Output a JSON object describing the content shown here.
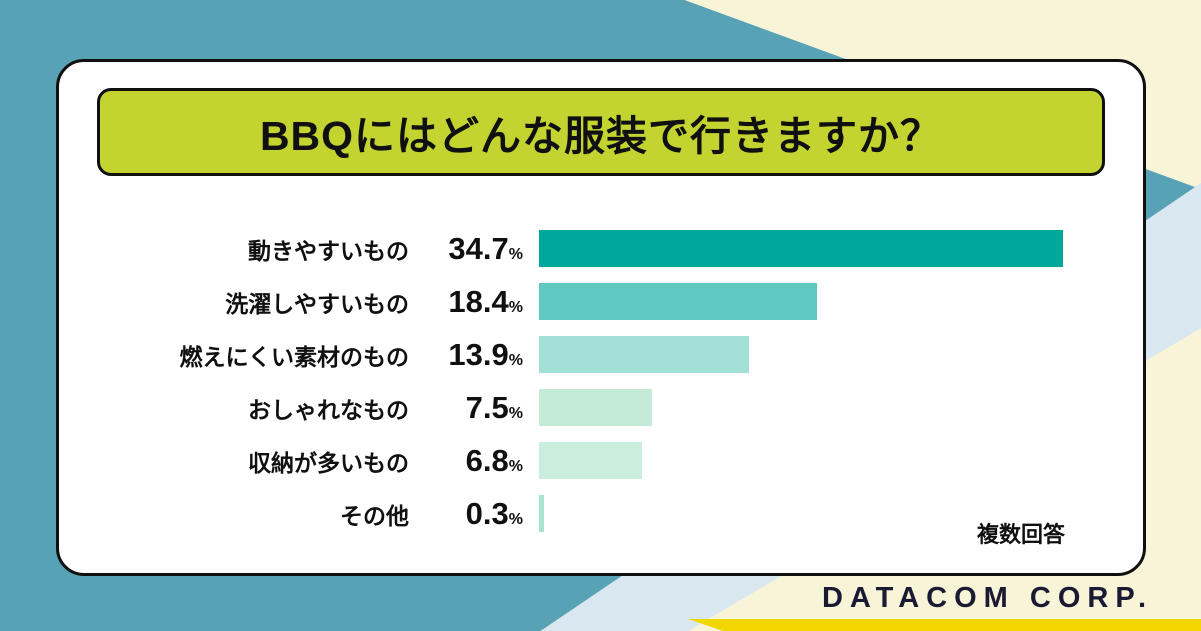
{
  "header": {
    "title": "BBQにはどんな服装で行きますか？"
  },
  "footer": {
    "brand": "DATACOM CORP."
  },
  "colors": {
    "background_teal": "#58a2b5",
    "background_cream": "#f7f4d8",
    "background_lightblue": "#d9e7f0",
    "accent_yellow": "#f2d600",
    "banner_green": "#c3d431",
    "border_ink": "#101010",
    "bar_colors": [
      "#00a89b",
      "#5fc8c1",
      "#a3e0d8",
      "#c3ebd8",
      "#c9eedd",
      "#a9e4d0"
    ]
  },
  "chart_data": {
    "type": "bar",
    "orientation": "horizontal",
    "title": "BBQにはどんな服装で行きますか？",
    "note": "複数回答",
    "unit": "%",
    "xlim": [
      0,
      36
    ],
    "grid": false,
    "legend": false,
    "categories": [
      "動きやすいもの",
      "洗濯しやすいもの",
      "燃えにくい素材のもの",
      "おしゃれなもの",
      "収納が多いもの",
      "その他"
    ],
    "values": [
      34.7,
      18.4,
      13.9,
      7.5,
      6.8,
      0.3
    ],
    "rows": [
      {
        "label": "動きやすいもの",
        "value": 34.7,
        "color": "#00a89b"
      },
      {
        "label": "洗濯しやすいもの",
        "value": 18.4,
        "color": "#5fc8c1"
      },
      {
        "label": "燃えにくい素材のもの",
        "value": 13.9,
        "color": "#a3e0d8"
      },
      {
        "label": "おしゃれなもの",
        "value": 7.5,
        "color": "#c3ebd8"
      },
      {
        "label": "収納が多いもの",
        "value": 6.8,
        "color": "#c9eedd"
      },
      {
        "label": "その他",
        "value": 0.3,
        "color": "#a9e4d0"
      }
    ]
  }
}
